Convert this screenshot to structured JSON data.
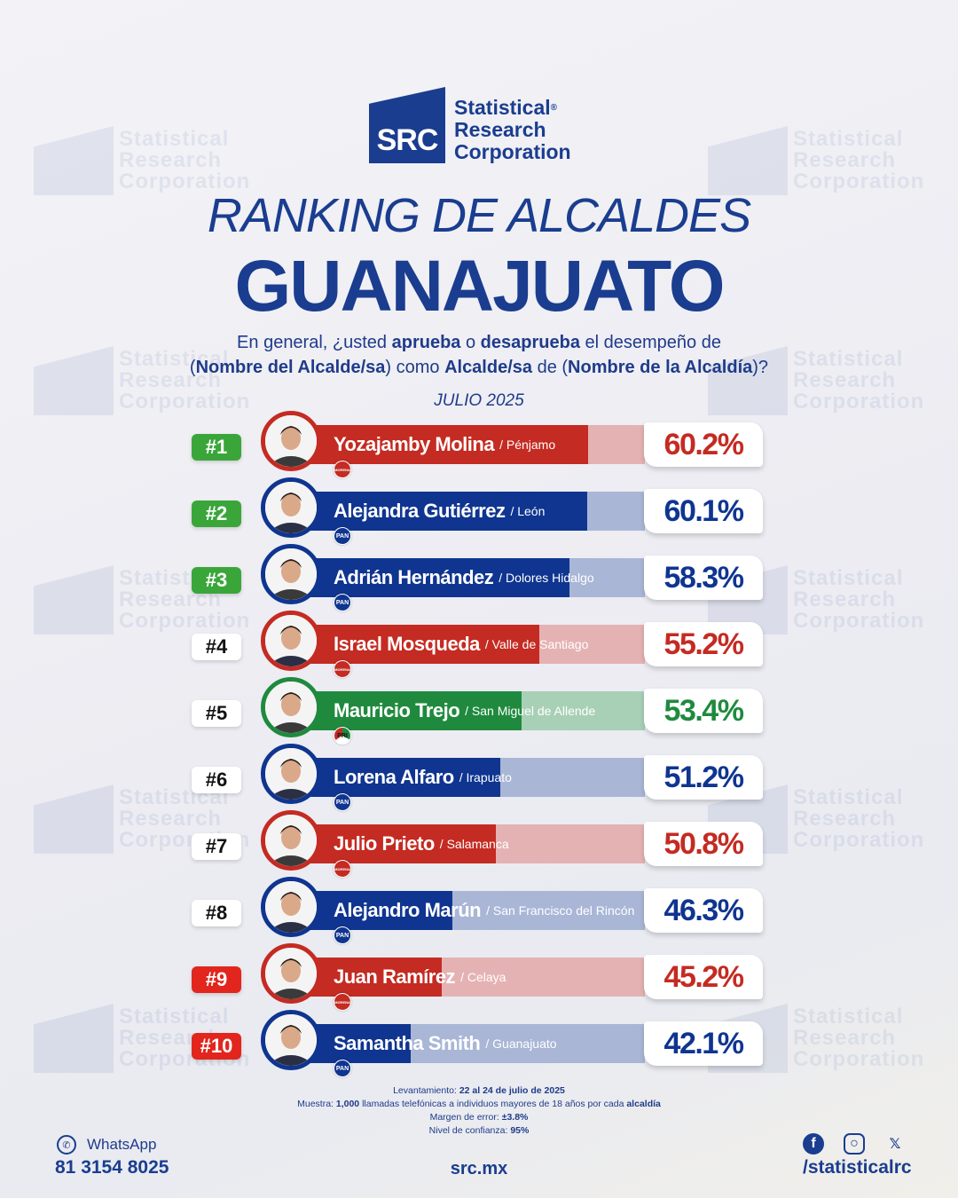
{
  "brand": {
    "logo_letters": "SRC",
    "line1": "Statistical",
    "line2": "Research",
    "line3": "Corporation",
    "reg": "®"
  },
  "title": {
    "line1": "RANKING DE ALCALDES",
    "line2": "GUANAJUATO"
  },
  "question": {
    "l1a": "En general, ¿usted ",
    "l1b": "aprueba",
    "l1c": " o ",
    "l1d": "desaprueba",
    "l1e": " el desempeño de",
    "l2a": "(",
    "l2b": "Nombre del Alcalde/sa",
    "l2c": ") como ",
    "l2d": "Alcalde/sa",
    "l2e": " de (",
    "l2f": "Nombre de la Alcaldía",
    "l2g": ")?"
  },
  "date": "JULIO 2025",
  "colors": {
    "morena": "#c42b22",
    "pan": "#0f3590",
    "pri": "#1f8a3e",
    "green_rank": "#3aa63a",
    "red_rank": "#e2261d"
  },
  "chart_data": {
    "type": "bar",
    "categories": [
      "Yozajamby Molina",
      "Alejandra Gutiérrez",
      "Adrián Hernández",
      "Israel Mosqueda",
      "Mauricio Trejo",
      "Lorena Alfaro",
      "Julio Prieto",
      "Alejandro Marún",
      "Juan Ramírez",
      "Samantha Smith"
    ],
    "values": [
      60.2,
      60.1,
      58.3,
      55.2,
      53.4,
      51.2,
      50.8,
      46.3,
      45.2,
      42.1
    ],
    "ylim": [
      0,
      100
    ],
    "rows": [
      {
        "rank": "#1",
        "rank_style": "green",
        "name": "Yozajamby Molina",
        "city": "/ Pénjamo",
        "party": "morena",
        "party_label": "MORENA",
        "value": 60.2,
        "label": "60.2%"
      },
      {
        "rank": "#2",
        "rank_style": "green",
        "name": "Alejandra Gutiérrez",
        "city": "/ León",
        "party": "pan",
        "party_label": "PAN",
        "value": 60.1,
        "label": "60.1%"
      },
      {
        "rank": "#3",
        "rank_style": "green",
        "name": "Adrián Hernández",
        "city": "/ Dolores Hidalgo",
        "party": "pan",
        "party_label": "PAN",
        "value": 58.3,
        "label": "58.3%"
      },
      {
        "rank": "#4",
        "rank_style": "white",
        "name": "Israel Mosqueda",
        "city": "/ Valle de Santiago",
        "party": "morena",
        "party_label": "MORENA",
        "value": 55.2,
        "label": "55.2%"
      },
      {
        "rank": "#5",
        "rank_style": "white",
        "name": "Mauricio Trejo",
        "city": "/ San Miguel de Allende",
        "party": "pri",
        "party_label": "PRI",
        "value": 53.4,
        "label": "53.4%"
      },
      {
        "rank": "#6",
        "rank_style": "white",
        "name": "Lorena Alfaro",
        "city": "/ Irapuato",
        "party": "pan",
        "party_label": "PAN",
        "value": 51.2,
        "label": "51.2%"
      },
      {
        "rank": "#7",
        "rank_style": "white",
        "name": "Julio Prieto",
        "city": "/ Salamanca",
        "party": "morena",
        "party_label": "MORENA",
        "value": 50.8,
        "label": "50.8%"
      },
      {
        "rank": "#8",
        "rank_style": "white",
        "name": "Alejandro Marún",
        "city": "/ San Francisco del Rincón",
        "party": "pan",
        "party_label": "PAN",
        "value": 46.3,
        "label": "46.3%"
      },
      {
        "rank": "#9",
        "rank_style": "red",
        "name": "Juan Ramírez",
        "city": "/ Celaya",
        "party": "morena",
        "party_label": "MORENA",
        "value": 45.2,
        "label": "45.2%"
      },
      {
        "rank": "#10",
        "rank_style": "red",
        "name": "Samantha Smith",
        "city": "/ Guanajuato",
        "party": "pan",
        "party_label": "PAN",
        "value": 42.1,
        "label": "42.1%"
      }
    ]
  },
  "footnotes": {
    "lev_label": "Levantamiento: ",
    "lev_value": "22 al 24 de julio de 2025",
    "mue_label": "Muestra: ",
    "mue_value": "1,000",
    "mue_text": " llamadas telefónicas a individuos mayores de 18 años por cada ",
    "mue_value2": "alcaldía",
    "mar_label": "Margen de error: ",
    "mar_value": "±3.8%",
    "niv_label": "Nivel de confianza: ",
    "niv_value": "95%"
  },
  "contact": {
    "whatsapp_label": "WhatsApp",
    "phone": "81 3154 8025",
    "site": "src.mx",
    "handle": "/statisticalrc"
  },
  "icons": [
    "whatsapp-icon",
    "facebook-icon",
    "instagram-icon",
    "x-icon"
  ]
}
